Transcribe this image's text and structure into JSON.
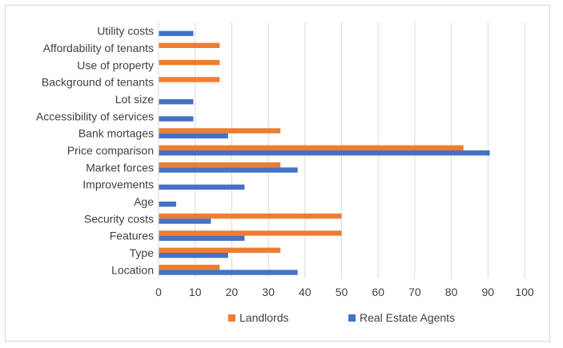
{
  "chart_data": {
    "type": "bar",
    "orientation": "horizontal",
    "categories": [
      "Location",
      "Type",
      "Features",
      "Security costs",
      "Age",
      "Improvements",
      "Market forces",
      "Price comparison",
      "Bank mortages",
      "Accessibility of services",
      "Lot size",
      "Background of tenants",
      "Use of property",
      "Affordability of tenants",
      "Utility costs"
    ],
    "series": [
      {
        "name": "Real Estate Agents",
        "color": "#4472c4",
        "values": [
          38,
          19,
          23.5,
          14.3,
          4.8,
          23.5,
          38,
          90.5,
          19,
          9.5,
          9.5,
          0,
          0,
          0,
          9.5
        ]
      },
      {
        "name": "Landlords",
        "color": "#ed7d31",
        "values": [
          16.7,
          33.3,
          50,
          50,
          0,
          0,
          33.3,
          83.3,
          33.3,
          0,
          0,
          16.7,
          16.7,
          16.7,
          0
        ]
      }
    ],
    "xlim": [
      0,
      100
    ],
    "x_ticks": [
      "0",
      "10",
      "20",
      "30",
      "40",
      "50",
      "60",
      "70",
      "80",
      "90",
      "100"
    ],
    "grid": true,
    "legend": {
      "position": "bottom",
      "entries": [
        "Landlords",
        "Real Estate Agents"
      ]
    },
    "title": "",
    "xlabel": "",
    "ylabel": ""
  }
}
